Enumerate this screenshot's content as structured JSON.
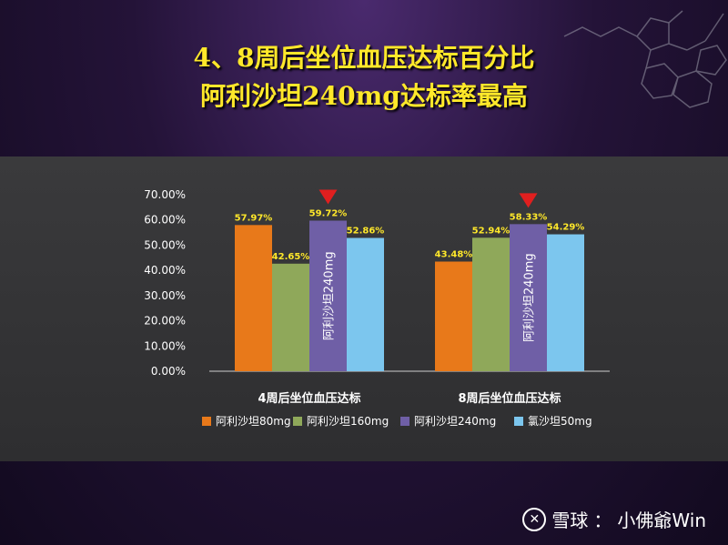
{
  "title": {
    "line1": "4、8周后坐位血压达标百分比",
    "line2": "阿利沙坦240mg达标率最高"
  },
  "watermark": {
    "brand": "雪球",
    "separator": "：",
    "author": "小佛爺Win"
  },
  "colors": {
    "title": "#ffe82a",
    "s1": "#e8791a",
    "s2": "#8fa85a",
    "s3": "#6f5fa6",
    "s4": "#7cc6ee",
    "marker": "#e01f1f"
  },
  "chart_data": {
    "type": "bar",
    "categories": [
      "4周后坐位血压达标",
      "8周后坐位血压达标"
    ],
    "series": [
      {
        "name": "阿利沙坦80mg",
        "values": [
          57.97,
          43.48
        ],
        "labels": [
          "57.97%",
          "43.48%"
        ]
      },
      {
        "name": "阿利沙坦160mg",
        "values": [
          42.65,
          52.94
        ],
        "labels": [
          "42.65%",
          "52.94%"
        ]
      },
      {
        "name": "阿利沙坦240mg",
        "values": [
          59.72,
          58.33
        ],
        "labels": [
          "59.72%",
          "58.33%"
        ]
      },
      {
        "name": "氯沙坦50mg",
        "values": [
          52.86,
          54.29
        ],
        "labels": [
          "52.86%",
          "54.29%"
        ]
      }
    ],
    "bar_annotation": "阿利沙坦240mg",
    "highlight_series": 2,
    "ylim": [
      0,
      70
    ],
    "yticks": [
      "0.00%",
      "10.00%",
      "20.00%",
      "30.00%",
      "40.00%",
      "50.00%",
      "60.00%",
      "70.00%"
    ],
    "grid": false,
    "legend_position": "bottom"
  }
}
